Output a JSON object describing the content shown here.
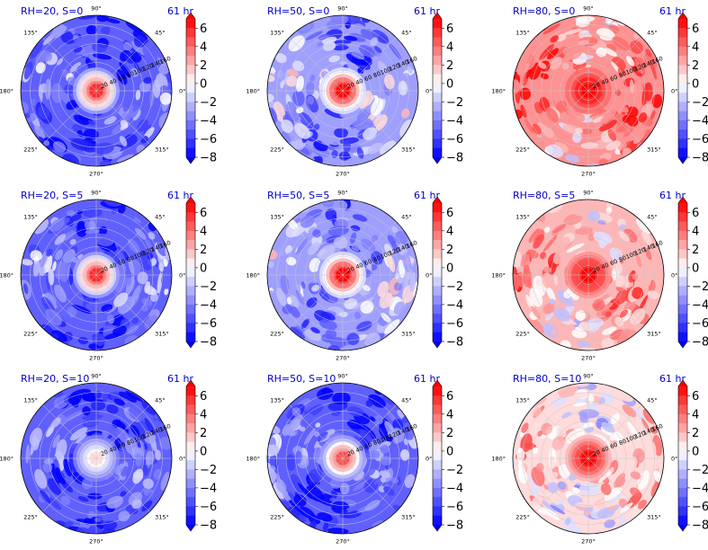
{
  "chart_data": {
    "type": "polar contour grid",
    "layout": {
      "rows": 3,
      "cols": 3
    },
    "time_label": "61 hr",
    "azimuth_ticks": [
      "90°",
      "45°",
      "0°",
      "315°",
      "270°",
      "225°",
      "180°",
      "135°"
    ],
    "radial_ticks": [
      "20",
      "40",
      "60",
      "80",
      "100",
      "120",
      "140",
      "160"
    ],
    "colorbar": {
      "ticks": [
        "6",
        "4",
        "2",
        "0",
        "−2",
        "−4",
        "−6",
        "−8"
      ],
      "vmin": -8,
      "vmax": 7,
      "colormap": "bwr",
      "extend": "both"
    },
    "panels": [
      {
        "title": "RH=20, S=0",
        "time": "61 hr",
        "center_anomaly": 6,
        "background": -5
      },
      {
        "title": "RH=50, S=0",
        "time": "61 hr",
        "center_anomaly": 7,
        "background": -3
      },
      {
        "title": "RH=80, S=0",
        "time": "61 hr",
        "center_anomaly": 7,
        "background": 3
      },
      {
        "title": "RH=20, S=5",
        "time": "61 hr",
        "center_anomaly": 6,
        "background": -5
      },
      {
        "title": "RH=50, S=5",
        "time": "61 hr",
        "center_anomaly": 7,
        "background": -3
      },
      {
        "title": "RH=80, S=5",
        "time": "61 hr",
        "center_anomaly": 7,
        "background": 2
      },
      {
        "title": "RH=20, S=10",
        "time": "61 hr",
        "center_anomaly": 1,
        "background": -5
      },
      {
        "title": "RH=50, S=10",
        "time": "61 hr",
        "center_anomaly": 5,
        "background": -5
      },
      {
        "title": "RH=80, S=10",
        "time": "61 hr",
        "center_anomaly": 7,
        "background": 1
      }
    ]
  }
}
